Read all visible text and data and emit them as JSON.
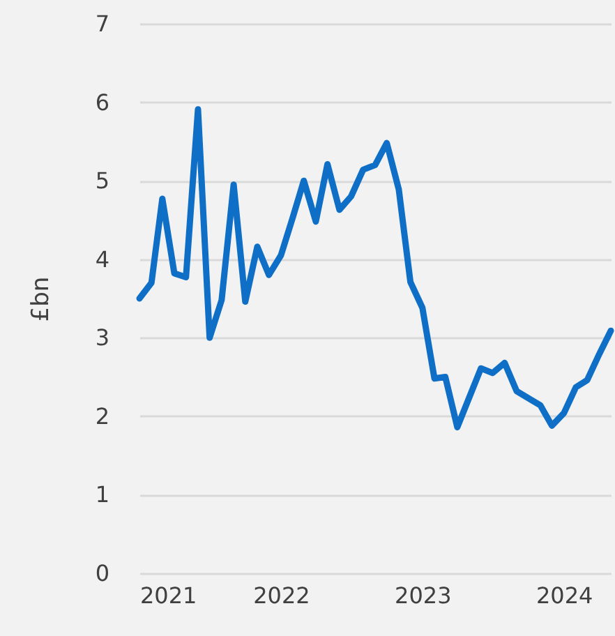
{
  "chart_data": {
    "type": "line",
    "ylabel": "£bn",
    "x": [
      "2021-01",
      "2021-02",
      "2021-03",
      "2021-04",
      "2021-05",
      "2021-06",
      "2021-07",
      "2021-08",
      "2021-09",
      "2021-10",
      "2021-11",
      "2021-12",
      "2022-01",
      "2022-02",
      "2022-03",
      "2022-04",
      "2022-05",
      "2022-06",
      "2022-07",
      "2022-08",
      "2022-09",
      "2022-10",
      "2022-11",
      "2022-12",
      "2023-01",
      "2023-02",
      "2023-03",
      "2023-04",
      "2023-05",
      "2023-06",
      "2023-07",
      "2023-08",
      "2023-09",
      "2023-10",
      "2023-11",
      "2023-12",
      "2024-01",
      "2024-02",
      "2024-03",
      "2024-04",
      "2024-05"
    ],
    "series": [
      {
        "color": "#0f6fc6",
        "values": [
          3.5,
          3.7,
          4.77,
          3.82,
          3.77,
          5.91,
          3.0,
          3.48,
          4.95,
          3.46,
          4.16,
          3.8,
          4.05,
          4.54,
          5.0,
          4.48,
          5.21,
          4.63,
          4.8,
          5.14,
          5.2,
          5.48,
          4.89,
          3.71,
          3.38,
          2.48,
          2.5,
          1.86,
          2.23,
          2.61,
          2.55,
          2.68,
          2.32,
          2.23,
          2.14,
          1.88,
          2.04,
          2.37,
          2.46,
          2.79,
          3.09
        ]
      }
    ],
    "xlim": [
      "2021-01",
      "2024-05"
    ],
    "xticks": [
      "2021",
      "2022",
      "2023",
      "2024"
    ],
    "ylim": [
      0,
      7
    ],
    "yticks": [
      0,
      1,
      2,
      3,
      4,
      5,
      6,
      7
    ],
    "grid": "y",
    "line_style": "solid"
  }
}
